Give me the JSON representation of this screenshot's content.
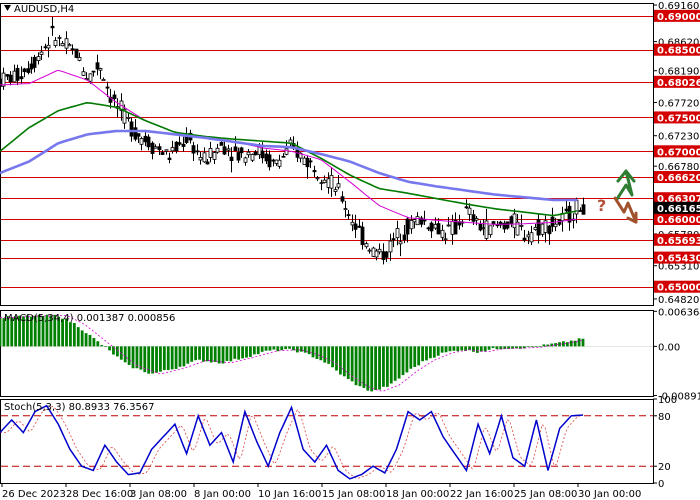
{
  "chart_data": [
    {
      "type": "line",
      "panel": "price",
      "title": "AUDUSD,H4",
      "ylim": [
        0.6473,
        0.6919
      ],
      "x_ticks": [
        "26 Dec 2023",
        "28 Dec 16:00",
        "3 Jan 08:00",
        "8 Jan 00:00",
        "10 Jan 16:00",
        "15 Jan 08:00",
        "18 Jan 00:00",
        "22 Jan 16:00",
        "25 Jan 08:00",
        "30 Jan 00:00"
      ],
      "y_ticks": [
        {
          "label": "0.69160",
          "value": 0.6916
        },
        {
          "label": "0.68620",
          "value": 0.6862
        },
        {
          "label": "0.68190",
          "value": 0.6819
        },
        {
          "label": "0.67720",
          "value": 0.6772
        },
        {
          "label": "0.67230",
          "value": 0.6723
        },
        {
          "label": "0.66780",
          "value": 0.6678
        },
        {
          "label": "0.66000",
          "value": 0.66
        },
        {
          "label": "0.65780",
          "value": 0.6578
        },
        {
          "label": "0.65310",
          "value": 0.6531
        },
        {
          "label": "0.64820",
          "value": 0.6482
        }
      ],
      "levels": [
        {
          "label": "0.69000",
          "value": 0.69
        },
        {
          "label": "0.68500",
          "value": 0.685
        },
        {
          "label": "0.68026",
          "value": 0.68026
        },
        {
          "label": "0.67500",
          "value": 0.675
        },
        {
          "label": "0.67000",
          "value": 0.67
        },
        {
          "label": "0.66620",
          "value": 0.6662
        },
        {
          "label": "0.66307",
          "value": 0.66307
        },
        {
          "label": "0.66000",
          "value": 0.66
        },
        {
          "label": "0.65693",
          "value": 0.65693
        },
        {
          "label": "0.65430",
          "value": 0.6543
        },
        {
          "label": "0.65000",
          "value": 0.65
        }
      ],
      "current_price": {
        "label": "0.66165",
        "value": 0.66165
      },
      "colors": {
        "level": "#d40000",
        "level_tag": "#d40000",
        "price_tag": "#000000",
        "candles": "#000000",
        "ma_fast": "#d600d6",
        "ma_mid": "#007a00",
        "ma_slow": "#7777ee",
        "arrow_up": "#2e7d32",
        "arrow_down": "#a0522d",
        "question": "#b5533a"
      },
      "moving_averages": [
        {
          "color": "#d600d6",
          "points": [
            [
              0.0,
              0.6798
            ],
            [
              0.05,
              0.68
            ],
            [
              0.1,
              0.682
            ],
            [
              0.15,
              0.6805
            ],
            [
              0.2,
              0.6772
            ],
            [
              0.25,
              0.6745
            ],
            [
              0.3,
              0.6728
            ],
            [
              0.35,
              0.6722
            ],
            [
              0.4,
              0.6715
            ],
            [
              0.45,
              0.6705
            ],
            [
              0.5,
              0.67
            ],
            [
              0.55,
              0.6688
            ],
            [
              0.6,
              0.6655
            ],
            [
              0.65,
              0.662
            ],
            [
              0.7,
              0.6602
            ],
            [
              0.75,
              0.6598
            ],
            [
              0.8,
              0.6595
            ],
            [
              0.85,
              0.6592
            ],
            [
              0.9,
              0.6593
            ],
            [
              0.95,
              0.6595
            ],
            [
              0.99,
              0.66
            ]
          ]
        },
        {
          "color": "#007a00",
          "points": [
            [
              0.0,
              0.67
            ],
            [
              0.05,
              0.6735
            ],
            [
              0.1,
              0.676
            ],
            [
              0.15,
              0.6772
            ],
            [
              0.2,
              0.6765
            ],
            [
              0.25,
              0.6745
            ],
            [
              0.3,
              0.6728
            ],
            [
              0.35,
              0.6722
            ],
            [
              0.4,
              0.6718
            ],
            [
              0.45,
              0.6715
            ],
            [
              0.5,
              0.6712
            ],
            [
              0.55,
              0.669
            ],
            [
              0.6,
              0.6665
            ],
            [
              0.65,
              0.6645
            ],
            [
              0.7,
              0.6638
            ],
            [
              0.75,
              0.663
            ],
            [
              0.8,
              0.6622
            ],
            [
              0.85,
              0.6615
            ],
            [
              0.9,
              0.661
            ],
            [
              0.95,
              0.6605
            ],
            [
              0.99,
              0.6612
            ]
          ]
        },
        {
          "color": "#7777ee",
          "points": [
            [
              0.0,
              0.6668
            ],
            [
              0.05,
              0.6685
            ],
            [
              0.1,
              0.6712
            ],
            [
              0.15,
              0.6725
            ],
            [
              0.2,
              0.673
            ],
            [
              0.25,
              0.673
            ],
            [
              0.3,
              0.6725
            ],
            [
              0.35,
              0.672
            ],
            [
              0.4,
              0.6714
            ],
            [
              0.45,
              0.6708
            ],
            [
              0.5,
              0.6706
            ],
            [
              0.55,
              0.6696
            ],
            [
              0.6,
              0.6685
            ],
            [
              0.65,
              0.6668
            ],
            [
              0.7,
              0.6655
            ],
            [
              0.75,
              0.6648
            ],
            [
              0.8,
              0.6642
            ],
            [
              0.85,
              0.6636
            ],
            [
              0.9,
              0.6632
            ],
            [
              0.95,
              0.6628
            ],
            [
              0.99,
              0.6628
            ]
          ]
        }
      ],
      "price_path": [
        [
          0.0,
          0.6805
        ],
        [
          0.03,
          0.6812
        ],
        [
          0.06,
          0.6835
        ],
        [
          0.09,
          0.6872
        ],
        [
          0.11,
          0.6855
        ],
        [
          0.13,
          0.6845
        ],
        [
          0.15,
          0.6808
        ],
        [
          0.17,
          0.683
        ],
        [
          0.19,
          0.678
        ],
        [
          0.21,
          0.6755
        ],
        [
          0.23,
          0.673
        ],
        [
          0.26,
          0.671
        ],
        [
          0.29,
          0.6693
        ],
        [
          0.32,
          0.672
        ],
        [
          0.35,
          0.6685
        ],
        [
          0.38,
          0.671
        ],
        [
          0.41,
          0.6695
        ],
        [
          0.44,
          0.6702
        ],
        [
          0.47,
          0.668
        ],
        [
          0.5,
          0.6705
        ],
        [
          0.52,
          0.669
        ],
        [
          0.55,
          0.667
        ],
        [
          0.58,
          0.664
        ],
        [
          0.6,
          0.6605
        ],
        [
          0.62,
          0.6575
        ],
        [
          0.64,
          0.6552
        ],
        [
          0.66,
          0.6548
        ],
        [
          0.68,
          0.6575
        ],
        [
          0.7,
          0.659
        ],
        [
          0.72,
          0.66
        ],
        [
          0.74,
          0.6592
        ],
        [
          0.76,
          0.658
        ],
        [
          0.78,
          0.6585
        ],
        [
          0.8,
          0.6612
        ],
        [
          0.82,
          0.659
        ],
        [
          0.84,
          0.6585
        ],
        [
          0.86,
          0.6592
        ],
        [
          0.88,
          0.6595
        ],
        [
          0.9,
          0.6578
        ],
        [
          0.93,
          0.659
        ],
        [
          0.96,
          0.6595
        ],
        [
          0.99,
          0.6617
        ]
      ]
    },
    {
      "type": "bar",
      "panel": "macd",
      "label": "MACD(5,34,4) 0.001387 0.000856",
      "ylim": [
        -0.009,
        0.0066
      ],
      "y_ticks": [
        {
          "label": "0.006364",
          "value": 0.006364
        },
        {
          "label": "0.00",
          "value": 0
        },
        {
          "label": "-0.008918",
          "value": -0.008918
        }
      ],
      "colors": {
        "histogram": "#008000",
        "signal": "#d600d6"
      },
      "histogram_path": [
        [
          0.0,
          0.0052
        ],
        [
          0.05,
          0.0055
        ],
        [
          0.1,
          0.0056
        ],
        [
          0.13,
          0.004
        ],
        [
          0.16,
          0.0015
        ],
        [
          0.19,
          -0.001
        ],
        [
          0.22,
          -0.0035
        ],
        [
          0.26,
          -0.005
        ],
        [
          0.3,
          -0.004
        ],
        [
          0.34,
          -0.0025
        ],
        [
          0.38,
          -0.003
        ],
        [
          0.42,
          -0.002
        ],
        [
          0.46,
          -0.0008
        ],
        [
          0.5,
          -0.0006
        ],
        [
          0.53,
          -0.0015
        ],
        [
          0.56,
          -0.003
        ],
        [
          0.59,
          -0.0055
        ],
        [
          0.62,
          -0.0075
        ],
        [
          0.64,
          -0.0082
        ],
        [
          0.67,
          -0.007
        ],
        [
          0.7,
          -0.0045
        ],
        [
          0.73,
          -0.0025
        ],
        [
          0.76,
          -0.0012
        ],
        [
          0.79,
          -0.0006
        ],
        [
          0.82,
          -0.001
        ],
        [
          0.85,
          -0.0004
        ],
        [
          0.88,
          -0.0003
        ],
        [
          0.91,
          -0.0002
        ],
        [
          0.94,
          0.0003
        ],
        [
          0.97,
          0.0008
        ],
        [
          1.0,
          0.0014
        ]
      ]
    },
    {
      "type": "line",
      "panel": "stochastic",
      "label": "Stoch(5,3,3) 80.8933 76.3567",
      "ylim": [
        0,
        100
      ],
      "y_ticks": [
        {
          "label": "100",
          "value": 100
        },
        {
          "label": "80",
          "value": 80
        },
        {
          "label": "20",
          "value": 20
        },
        {
          "label": "0",
          "value": 0
        }
      ],
      "levels": [
        80,
        20
      ],
      "colors": {
        "main": "#0000cc",
        "signal": "#d44",
        "level": "#c00000"
      },
      "main_path": [
        [
          0.0,
          60
        ],
        [
          0.02,
          75
        ],
        [
          0.04,
          60
        ],
        [
          0.06,
          85
        ],
        [
          0.08,
          92
        ],
        [
          0.1,
          70
        ],
        [
          0.12,
          40
        ],
        [
          0.14,
          20
        ],
        [
          0.16,
          15
        ],
        [
          0.18,
          45
        ],
        [
          0.2,
          25
        ],
        [
          0.22,
          10
        ],
        [
          0.24,
          12
        ],
        [
          0.26,
          40
        ],
        [
          0.28,
          55
        ],
        [
          0.3,
          70
        ],
        [
          0.32,
          35
        ],
        [
          0.34,
          80
        ],
        [
          0.36,
          45
        ],
        [
          0.38,
          60
        ],
        [
          0.4,
          25
        ],
        [
          0.42,
          85
        ],
        [
          0.44,
          50
        ],
        [
          0.46,
          20
        ],
        [
          0.48,
          60
        ],
        [
          0.5,
          90
        ],
        [
          0.52,
          40
        ],
        [
          0.54,
          25
        ],
        [
          0.56,
          45
        ],
        [
          0.58,
          15
        ],
        [
          0.6,
          5
        ],
        [
          0.62,
          10
        ],
        [
          0.64,
          20
        ],
        [
          0.66,
          12
        ],
        [
          0.68,
          40
        ],
        [
          0.7,
          85
        ],
        [
          0.72,
          75
        ],
        [
          0.74,
          85
        ],
        [
          0.76,
          55
        ],
        [
          0.78,
          35
        ],
        [
          0.8,
          15
        ],
        [
          0.82,
          70
        ],
        [
          0.84,
          35
        ],
        [
          0.86,
          80
        ],
        [
          0.88,
          30
        ],
        [
          0.9,
          20
        ],
        [
          0.92,
          75
        ],
        [
          0.94,
          15
        ],
        [
          0.96,
          65
        ],
        [
          0.98,
          80
        ],
        [
          1.0,
          81
        ]
      ]
    }
  ]
}
